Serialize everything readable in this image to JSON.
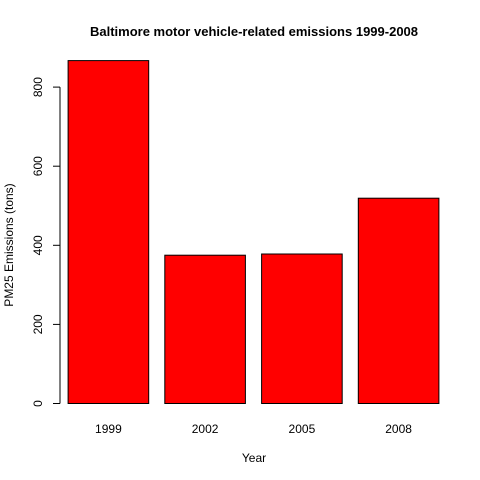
{
  "chart_data": {
    "type": "bar",
    "title": "Baltimore motor vehicle-related emissions 1999-2008",
    "xlabel": "Year",
    "ylabel": "PM25 Emissions (tons)",
    "categories": [
      "1999",
      "2002",
      "2005",
      "2008"
    ],
    "values": [
      867,
      375,
      378,
      519
    ],
    "ylim": [
      0,
      900
    ],
    "yticks": [
      "0",
      "200",
      "400",
      "600",
      "800"
    ],
    "bar_color": "#ff0000",
    "grid": false,
    "legend": "none"
  }
}
